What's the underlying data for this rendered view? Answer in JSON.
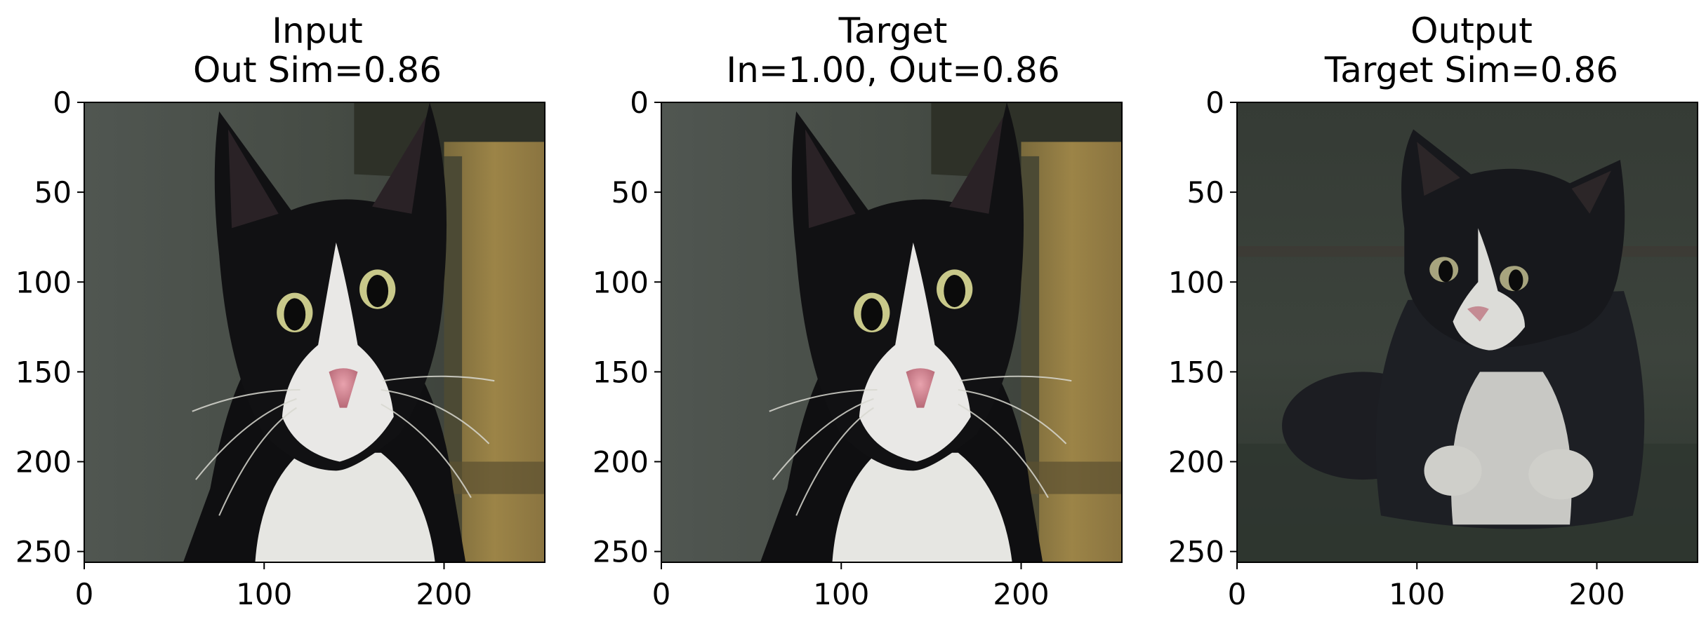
{
  "figure": {
    "background": "#ffffff",
    "panels": [
      {
        "id": "input",
        "title_line1": "Input",
        "title_line2": "Out Sim=0.86",
        "image": "tuxedo-cat-closeup",
        "wall_color": "#4a4f46",
        "fur_color": "#0e0e10"
      },
      {
        "id": "target",
        "title_line1": "Target",
        "title_line2": "In=1.00, Out=0.86",
        "image": "tuxedo-cat-closeup",
        "wall_color": "#4a4f46",
        "fur_color": "#0e0e10"
      },
      {
        "id": "output",
        "title_line1": "Output",
        "title_line2": "Target Sim=0.86",
        "image": "tuxedo-kitten-sitting",
        "wall_color": "#3a4038",
        "fur_color": "#1a1c20"
      }
    ],
    "axes": {
      "x_ticks": [
        "0",
        "100",
        "200"
      ],
      "y_ticks": [
        "0",
        "50",
        "100",
        "150",
        "200",
        "250"
      ],
      "x_tick_values": [
        0,
        100,
        200
      ],
      "y_tick_values": [
        0,
        50,
        100,
        150,
        200,
        250
      ],
      "range": [
        0,
        256
      ]
    }
  }
}
